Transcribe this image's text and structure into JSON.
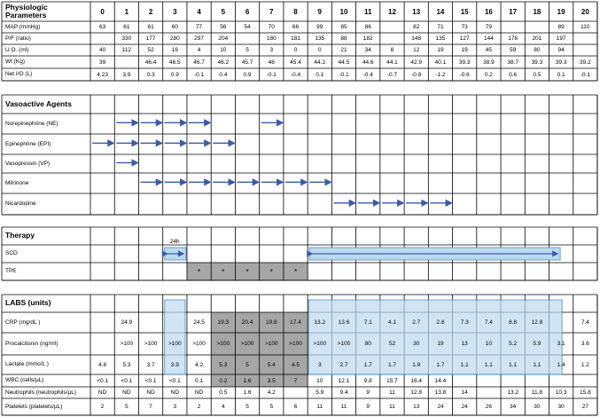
{
  "days": [
    "0",
    "1",
    "2",
    "3",
    "4",
    "5",
    "6",
    "7",
    "8",
    "9",
    "10",
    "11",
    "12",
    "13",
    "14",
    "15",
    "16",
    "17",
    "18",
    "19",
    "20"
  ],
  "sections": {
    "physiologic": {
      "title": "Physiologic Parameters",
      "rows": [
        {
          "label": "MAP (mmHg)",
          "values": [
            "63",
            "61",
            "61",
            "60",
            "77",
            "56",
            "54",
            "70",
            "66",
            "99",
            "85",
            "86",
            "",
            "82",
            "71",
            "73",
            "79",
            "",
            "",
            "89",
            "110"
          ]
        },
        {
          "label": "P/F (ratio)",
          "values": [
            "",
            "330",
            "177",
            "280",
            "297",
            "204",
            "",
            "180",
            "181",
            "135",
            "88",
            "182",
            "",
            "148",
            "135",
            "127",
            "144",
            "178",
            "201",
            "197",
            ""
          ]
        },
        {
          "label": "U.O. (ml)",
          "values": [
            "40",
            "112",
            "52",
            "16",
            "4",
            "10",
            "5",
            "3",
            "0",
            "0",
            "21",
            "34",
            "8",
            "12",
            "19",
            "19",
            "45",
            "59",
            "80",
            "94",
            ""
          ]
        },
        {
          "label": "Wt (Kg)",
          "values": [
            "39",
            "",
            "46.4",
            "46.5",
            "46.7",
            "46.2",
            "45.7",
            "46",
            "45.4",
            "44.2",
            "44.5",
            "44.6",
            "44.1",
            "42.9",
            "40.1",
            "39.3",
            "38.9",
            "38.7",
            "39.3",
            "39.3",
            "39.2"
          ]
        },
        {
          "label": "Net I/O (L)",
          "values": [
            "4.23",
            "3.9",
            "0.3",
            "0.9",
            "-0.1",
            "0.4",
            "0.9",
            "-0.1",
            "-0.4",
            "0.1",
            "-0.1",
            "-0.4",
            "-0.7",
            "-0.8",
            "-1.2",
            "-0.6",
            "0.2",
            "0.6",
            "0.5",
            "0.1",
            "-0.1"
          ]
        }
      ]
    },
    "vasoactive": {
      "title": "Vasoactive Agents",
      "rows": [
        {
          "label": "Norepinephrine (NE)",
          "arrows": [
            [
              1,
              2
            ],
            [
              2,
              3
            ],
            [
              3,
              4
            ],
            [
              4,
              5
            ],
            [
              7,
              8
            ]
          ]
        },
        {
          "label": "Epinephrine (EPI)",
          "arrows": [
            [
              0,
              1
            ],
            [
              1,
              2
            ],
            [
              2,
              3
            ],
            [
              3,
              4
            ],
            [
              4,
              5
            ],
            [
              5,
              6
            ]
          ]
        },
        {
          "label": "Vasopressin (VP)",
          "arrows": [
            [
              1,
              2
            ]
          ]
        },
        {
          "label": "Milrinone",
          "arrows": [
            [
              2,
              3
            ],
            [
              3,
              4
            ],
            [
              4,
              5
            ],
            [
              5,
              6
            ],
            [
              6,
              7
            ],
            [
              7,
              8
            ],
            [
              8,
              9
            ],
            [
              9,
              10
            ]
          ]
        },
        {
          "label": "Nicardopine",
          "arrows": [
            [
              10,
              11
            ],
            [
              11,
              12
            ],
            [
              12,
              13
            ],
            [
              13,
              14
            ],
            [
              14,
              15
            ]
          ]
        }
      ]
    },
    "therapy": {
      "title": "Therapy",
      "rows": [
        {
          "label": "SCD",
          "blocks": [
            {
              "from": 3,
              "to": 4,
              "note": "24h"
            },
            {
              "from": 9,
              "to": 19.5
            }
          ]
        },
        {
          "label": "TPE",
          "marks": [
            4,
            5,
            6,
            7,
            8
          ],
          "mark_symbol": "*"
        }
      ]
    },
    "labs": {
      "title": "LABS (units)",
      "rows": [
        {
          "label": "CRP (mg/dL )",
          "values": [
            "",
            "24.9",
            "",
            "",
            "24.5",
            "19.3",
            "20.4",
            "19.8",
            "17.4",
            "13.2",
            "13.6",
            "7.1",
            "4.1",
            "2.7",
            "2.8",
            "7.3",
            "7.4",
            "8.8",
            "12.8",
            "",
            "7.4"
          ]
        },
        {
          "label": "Procalcitonin (ng/ml)",
          "values": [
            "",
            ">100",
            ">100",
            ">100",
            ">100",
            ">100",
            ">100",
            ">100",
            ">100",
            ">100",
            ">100",
            "80",
            "52",
            "30",
            "19",
            "13",
            "10",
            "5.2",
            "5.9",
            "3.1",
            "3.6"
          ]
        },
        {
          "label": "Lactate (mmo/L )",
          "values": [
            "4.8",
            "5.3",
            "3.7",
            "3.9",
            "4.2",
            "5.3",
            "5",
            "5.4",
            "4.5",
            "3",
            "2.7",
            "1.7",
            "1.7",
            "1.9",
            "1.7",
            "1.1",
            "1.1",
            "1.1",
            "1.1",
            "1.4",
            "1.2"
          ]
        },
        {
          "label": "WBC (cells/µL)",
          "values": [
            "<0.1",
            "<0.1",
            "<0.1",
            "<0.1",
            "0.1",
            "0.2",
            "1.6",
            "3.5",
            "7",
            "10",
            "12.1",
            "9.8",
            "15.7",
            "16.4",
            "14.4",
            "",
            "",
            "",
            "",
            "",
            ""
          ]
        },
        {
          "label": "Neutrophils (neutrophils/µL)",
          "values": [
            "ND",
            "ND",
            "ND",
            "ND",
            "ND",
            "0.5",
            "1.6",
            "4.2",
            "",
            "5.9",
            "9.4",
            "9",
            "11",
            "12.8",
            "13.8",
            "14",
            "",
            "13.2",
            "11.8",
            "10.3",
            "15.8"
          ]
        },
        {
          "label": "Platelets (platelets/µL)",
          "values": [
            "2",
            "5",
            "7",
            "3",
            "2",
            "4",
            "5",
            "5",
            "6",
            "11",
            "11",
            "9",
            "11",
            "13",
            "24",
            "24",
            "26",
            "34",
            "30",
            "30",
            "27"
          ]
        }
      ]
    }
  },
  "colors": {
    "grid": "#000000",
    "arrow": "#3b5ba8",
    "highlight_fill": "#bcd9ee",
    "highlight_stroke": "#4a90c2",
    "tpe_fill": "#a6a6a6"
  }
}
